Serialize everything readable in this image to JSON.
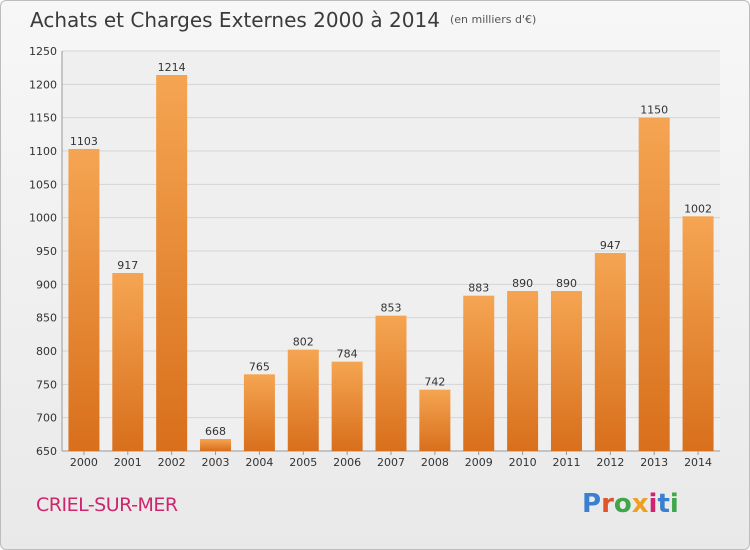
{
  "header": {
    "title": "Achats et Charges Externes 2000 à 2014",
    "unit": "(en milliers d'€)"
  },
  "footer": {
    "city": "CRIEL-SUR-MER",
    "brand": "Proxiti"
  },
  "colors": {
    "bar_light": "#f5a552",
    "bar_dark": "#d86f1c",
    "city": "#d0246e",
    "brand_letters": [
      "#3a7fd0",
      "#e0542a",
      "#3fa64a",
      "#f0a020",
      "#d0246e",
      "#3a7fd0",
      "#3fa64a"
    ]
  },
  "chart_data": {
    "type": "bar",
    "title": "Achats et Charges Externes 2000 à 2014",
    "subtitle": "(en milliers d'€)",
    "categories": [
      "2000",
      "2001",
      "2002",
      "2003",
      "2004",
      "2005",
      "2006",
      "2007",
      "2008",
      "2009",
      "2010",
      "2011",
      "2012",
      "2013",
      "2014"
    ],
    "values": [
      1103,
      917,
      1214,
      668,
      765,
      802,
      784,
      853,
      742,
      883,
      890,
      890,
      947,
      1150,
      1002
    ],
    "data_labels": [
      "1103",
      "917",
      "1214",
      "668",
      "765",
      "802",
      "784",
      "853",
      "742",
      "883",
      "890",
      "890",
      "947",
      "1150",
      "1002"
    ],
    "ylim": [
      650,
      1250
    ],
    "yticks": [
      650,
      700,
      750,
      800,
      850,
      900,
      950,
      1000,
      1050,
      1100,
      1150,
      1200,
      1250
    ],
    "grid": true,
    "legend": "none"
  }
}
